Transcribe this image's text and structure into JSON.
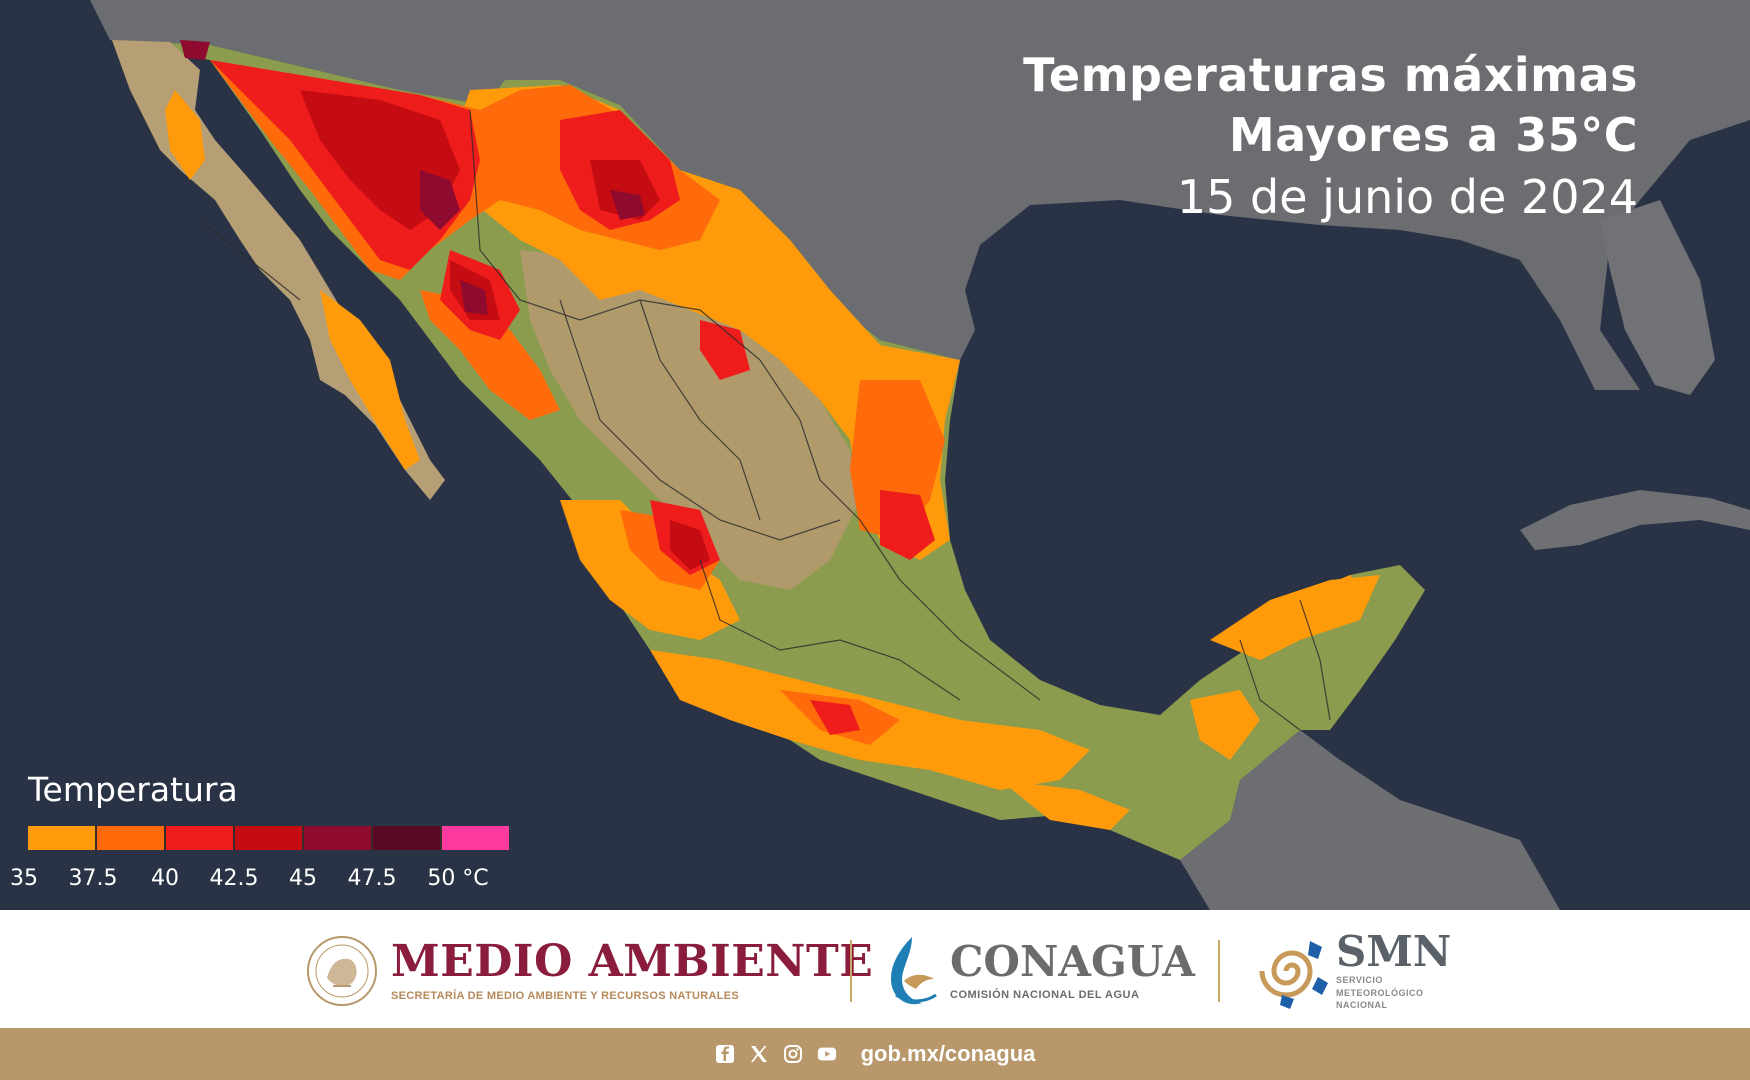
{
  "title": {
    "line1": "Temperaturas máximas",
    "line2": "Mayores a 35°C",
    "date": "15 de junio de 2024"
  },
  "legend": {
    "title": "Temperatura",
    "ticks": [
      "35",
      "37.5",
      "40",
      "42.5",
      "45",
      "47.5",
      "50 °C"
    ],
    "colors": [
      "#ff9a0a",
      "#ff6a0a",
      "#ef1c1c",
      "#c40c12",
      "#8e0a2e",
      "#5a0a24",
      "#ff3a9e"
    ]
  },
  "colors": {
    "ocean": "#2b3447",
    "land_usa": "#6e6e6e",
    "land_mexico_base": "#8a9a4a",
    "brand_wine": "#8a1d3c",
    "brand_gold": "#b8986a"
  },
  "logos": {
    "medio_ambiente": "MEDIO AMBIENTE",
    "medio_ambiente_sub": "SECRETARÍA DE MEDIO AMBIENTE Y RECURSOS NATURALES",
    "conagua": "CONAGUA",
    "conagua_sub": "COMISIÓN NACIONAL DEL AGUA",
    "smn": "SMN",
    "smn_sub1": "SERVICIO",
    "smn_sub2": "METEOROLÓGICO",
    "smn_sub3": "NACIONAL"
  },
  "footer": {
    "icons": [
      "facebook-icon",
      "x-icon",
      "instagram-icon",
      "youtube-icon"
    ],
    "url": "gob.mx/conagua"
  }
}
